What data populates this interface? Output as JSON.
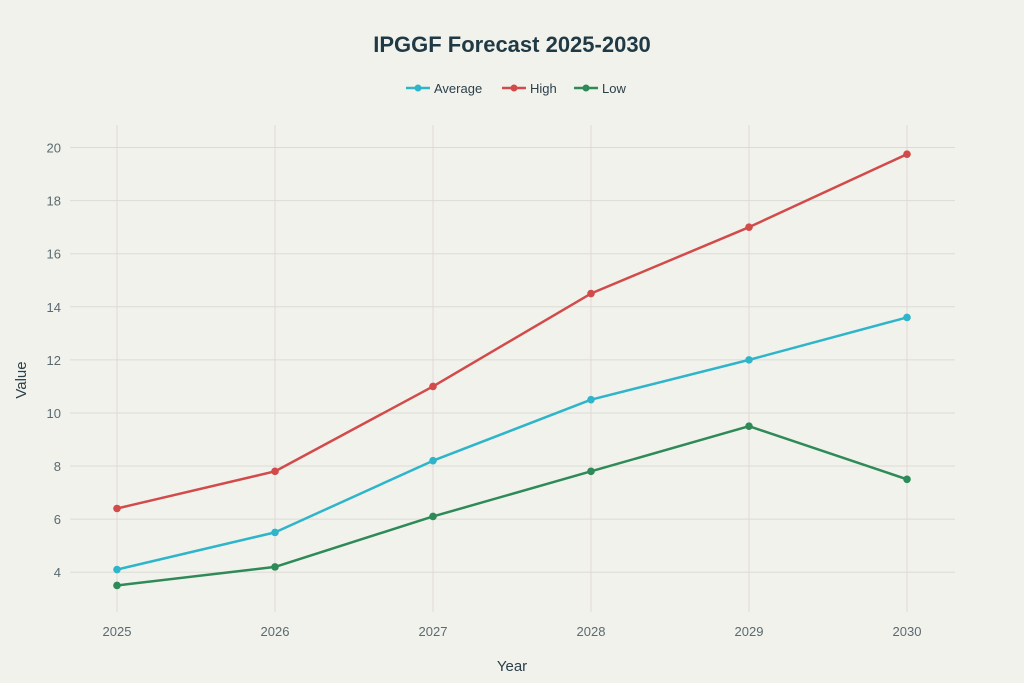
{
  "chart_data": {
    "type": "line",
    "title": "IPGGF Forecast 2025-2030",
    "xlabel": "Year",
    "ylabel": "Value",
    "x": [
      "2025",
      "2026",
      "2027",
      "2028",
      "2029",
      "2030"
    ],
    "ylim": [
      2.5,
      20.85
    ],
    "yticks": [
      4,
      6,
      8,
      10,
      12,
      14,
      16,
      18,
      20
    ],
    "grid": true,
    "legend_position": "top-center",
    "series": [
      {
        "name": "Average",
        "color": "#2eb5c9",
        "values": [
          4.1,
          5.5,
          8.2,
          10.5,
          12.0,
          13.6
        ]
      },
      {
        "name": "High",
        "color": "#d24b4b",
        "values": [
          6.4,
          7.8,
          11.0,
          14.5,
          17.0,
          19.75
        ]
      },
      {
        "name": "Low",
        "color": "#2e8a57",
        "values": [
          3.5,
          4.2,
          6.1,
          7.8,
          9.5,
          7.5
        ]
      }
    ]
  }
}
